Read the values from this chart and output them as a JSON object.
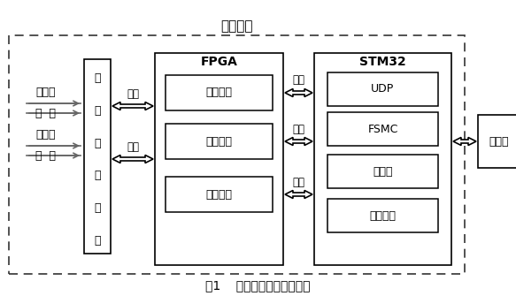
{
  "title": "采集部分",
  "caption": "图1    目标信号采集板结构图",
  "bg_color": "#ffffff",
  "fpga_label": "FPGA",
  "stm32_label": "STM32",
  "analog_label": "模拟量",
  "digital_label": "数字量",
  "dots": "：  ：",
  "signal_box_lines": [
    "信",
    "号",
    "采",
    "集",
    "电",
    "路"
  ],
  "fpga_boxes": [
    "地址译码",
    "采集控制",
    "数据缓存"
  ],
  "stm32_boxes": [
    "UDP",
    "FSMC",
    "定时器",
    "外部中断"
  ],
  "host_label": "上位机",
  "ctrl_label": "控制",
  "data_label": "数据",
  "addr_label": "地址",
  "ctrl_label2": "控制",
  "addr_label2": "地址",
  "data_label2": "数据"
}
